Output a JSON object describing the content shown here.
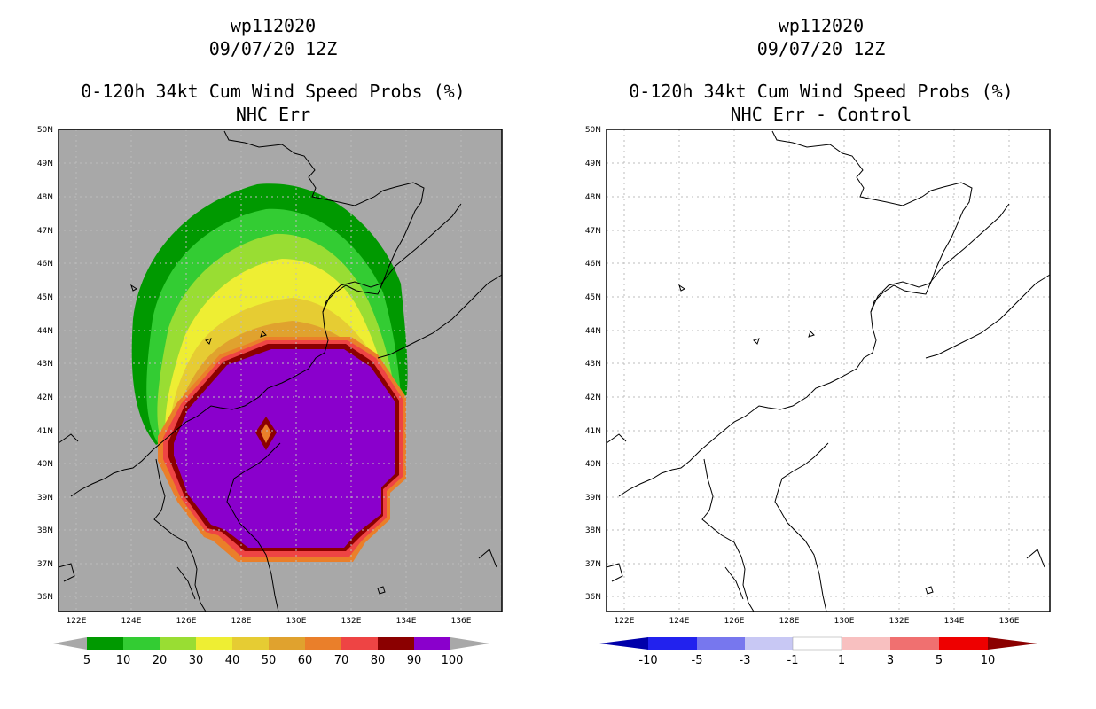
{
  "panels": [
    {
      "storm_id": "wp112020",
      "datetime": "09/07/20 12Z",
      "product": "0-120h 34kt Cum Wind Speed Probs (%)",
      "subtitle": "NHC Err",
      "colorbar": {
        "labels": [
          "5",
          "10",
          "20",
          "30",
          "40",
          "50",
          "60",
          "70",
          "80",
          "90",
          "100"
        ],
        "colors": [
          "#009900",
          "#33cc33",
          "#99dd33",
          "#eeee33",
          "#e6cc33",
          "#e0a22e",
          "#ea7f2a",
          "#ee4444",
          "#8b0000",
          "#8a00cc"
        ]
      }
    },
    {
      "storm_id": "wp112020",
      "datetime": "09/07/20 12Z",
      "product": "0-120h 34kt Cum Wind Speed Probs (%)",
      "subtitle": "NHC Err - Control",
      "colorbar": {
        "labels": [
          "-10",
          "-5",
          "-3",
          "-1",
          "1",
          "3",
          "5",
          "10"
        ],
        "colors": [
          "#0000aa",
          "#2222ee",
          "#7777ee",
          "#c8c8f4",
          "#ffffff",
          "#f8c0c0",
          "#f07070",
          "#ee0000",
          "#8b0000"
        ]
      }
    }
  ],
  "axes": {
    "lat_labels": [
      "50N",
      "49N",
      "48N",
      "47N",
      "46N",
      "45N",
      "44N",
      "43N",
      "42N",
      "41N",
      "40N",
      "39N",
      "38N",
      "37N",
      "36N"
    ],
    "lon_labels": [
      "122E",
      "124E",
      "126E",
      "128E",
      "130E",
      "132E",
      "134E",
      "136E"
    ]
  },
  "colors": {
    "land_gray": "#a8a8a8",
    "coast": "#000000",
    "grid": "#bdbdbd"
  }
}
